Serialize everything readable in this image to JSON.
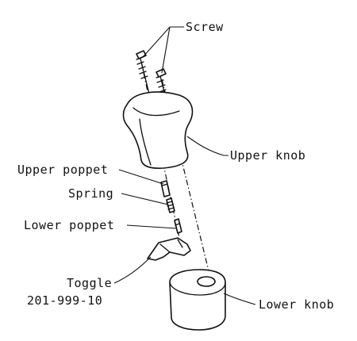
{
  "labels": {
    "screw": "Screw",
    "upper_knob": "Upper knob",
    "upper_poppet": "Upper poppet",
    "spring": "Spring",
    "lower_poppet": "Lower poppet",
    "toggle": "Toggle",
    "toggle_part_number": "201-999-10",
    "lower_knob": "Lower knob"
  }
}
